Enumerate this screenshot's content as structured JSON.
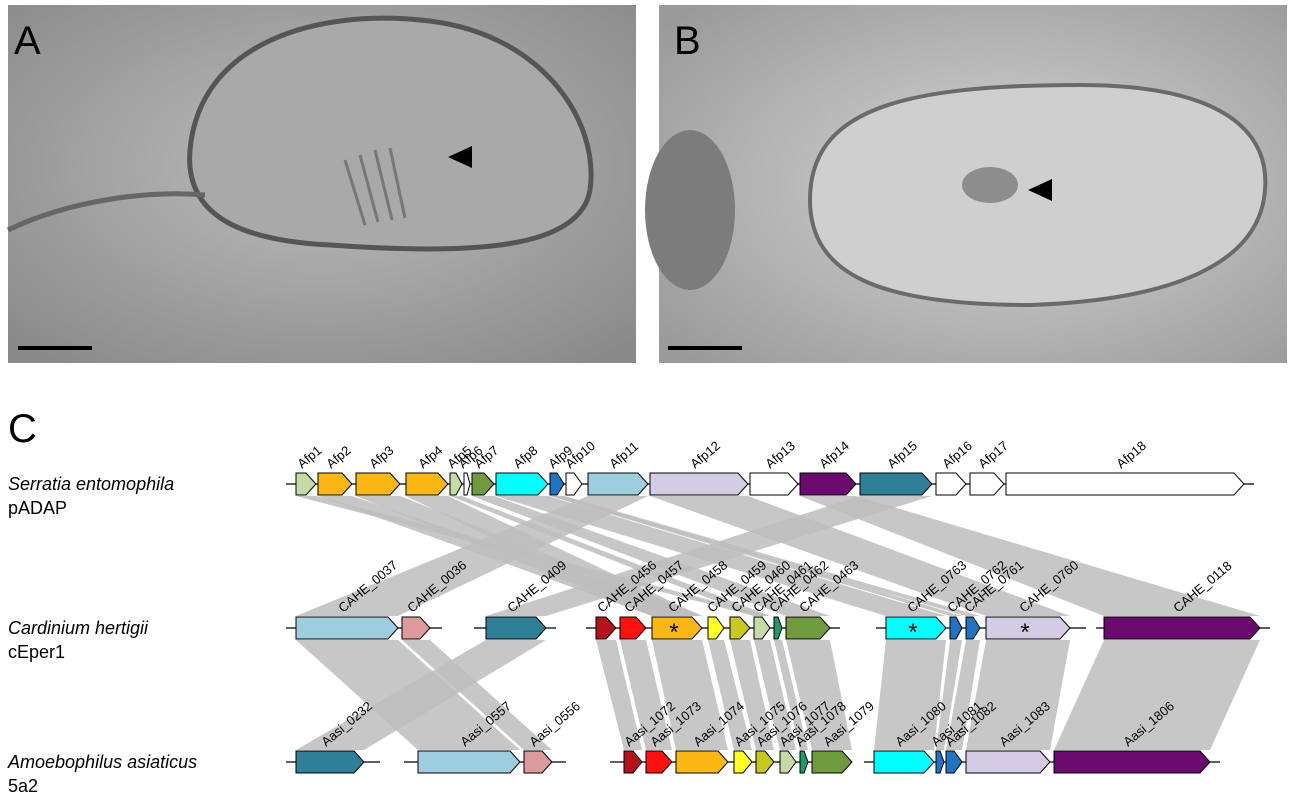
{
  "panels": [
    {
      "label": "A"
    },
    {
      "label": "B"
    }
  ],
  "panel_c": {
    "label": "C",
    "tracks": [
      {
        "organism": "Serratia entomophila",
        "strain": "pADAP",
        "genes": [
          {
            "label": "Afp1",
            "color": "#c5dba5"
          },
          {
            "label": "Afp2",
            "color": "#fbb714"
          },
          {
            "label": "Afp3",
            "color": "#fbb714"
          },
          {
            "label": "Afp4",
            "color": "#fbb714"
          },
          {
            "label": "Afp5",
            "color": "#c5dba5"
          },
          {
            "label": "Afp6",
            "color": "#ffffff"
          },
          {
            "label": "Afp7",
            "color": "#6f9a3e"
          },
          {
            "label": "Afp8",
            "color": "#00ffff"
          },
          {
            "label": "Afp9",
            "color": "#1f74c4"
          },
          {
            "label": "Afp10",
            "color": "#ffffff"
          },
          {
            "label": "Afp11",
            "color": "#9ecde0"
          },
          {
            "label": "Afp12",
            "color": "#d4cce4"
          },
          {
            "label": "Afp13",
            "color": "#ffffff"
          },
          {
            "label": "Afp14",
            "color": "#6b0b6f"
          },
          {
            "label": "Afp15",
            "color": "#2f7f99"
          },
          {
            "label": "Afp16",
            "color": "#ffffff"
          },
          {
            "label": "Afp17",
            "color": "#ffffff"
          },
          {
            "label": "Afp18",
            "color": "#ffffff"
          }
        ]
      },
      {
        "organism": "Cardinium hertigii",
        "strain": "cEper1",
        "genes": [
          {
            "label": "CAHE_0037",
            "color": "#9ecde0"
          },
          {
            "label": "CAHE_0036",
            "color": "#dc9a9a"
          },
          {
            "label": "CAHE_0409",
            "color": "#2f7f99"
          },
          {
            "label": "CAHE_0456",
            "color": "#b5121b"
          },
          {
            "label": "CAHE_0457",
            "color": "#ff1111"
          },
          {
            "label": "CAHE_0458",
            "color": "#fbb714",
            "marker": "*"
          },
          {
            "label": "CAHE_0459",
            "color": "#ffff22"
          },
          {
            "label": "CAHE_0460",
            "color": "#c8c81e"
          },
          {
            "label": "CAHE_0461",
            "color": "#c5dba5"
          },
          {
            "label": "CAHE_0462",
            "color": "#229966"
          },
          {
            "label": "CAHE_0463",
            "color": "#6f9a3e"
          },
          {
            "label": "CAHE_0763",
            "color": "#00ffff",
            "marker": "*"
          },
          {
            "label": "CAHE_0762",
            "color": "#1f74c4"
          },
          {
            "label": "CAHE_0761",
            "color": "#1f74c4"
          },
          {
            "label": "CAHE_0760",
            "color": "#d4cce4",
            "marker": "*"
          },
          {
            "label": "CAHE_0118",
            "color": "#6b0b6f"
          }
        ]
      },
      {
        "organism": "Amoebophilus asiaticus",
        "strain": "5a2",
        "genes": [
          {
            "label": "Aasi_0232",
            "color": "#2f7f99"
          },
          {
            "label": "Aasi_0557",
            "color": "#9ecde0"
          },
          {
            "label": "Aasi_0556",
            "color": "#dc9a9a"
          },
          {
            "label": "Aasi_1072",
            "color": "#b5121b"
          },
          {
            "label": "Aasi_1073",
            "color": "#ff1111"
          },
          {
            "label": "Aasi_1074",
            "color": "#fbb714"
          },
          {
            "label": "Aasi_1075",
            "color": "#ffff22"
          },
          {
            "label": "Aasi_1076",
            "color": "#c8c81e"
          },
          {
            "label": "Aasi_1077",
            "color": "#c5dba5"
          },
          {
            "label": "Aasi_1078",
            "color": "#229966"
          },
          {
            "label": "Aasi_1079",
            "color": "#6f9a3e"
          },
          {
            "label": "Aasi_1080",
            "color": "#00ffff"
          },
          {
            "label": "Aasi_1081",
            "color": "#1f74c4"
          },
          {
            "label": "Aasi_1082",
            "color": "#1f74c4"
          },
          {
            "label": "Aasi_1083",
            "color": "#d4cce4"
          },
          {
            "label": "Aasi_1806",
            "color": "#6b0b6f"
          }
        ]
      }
    ]
  }
}
